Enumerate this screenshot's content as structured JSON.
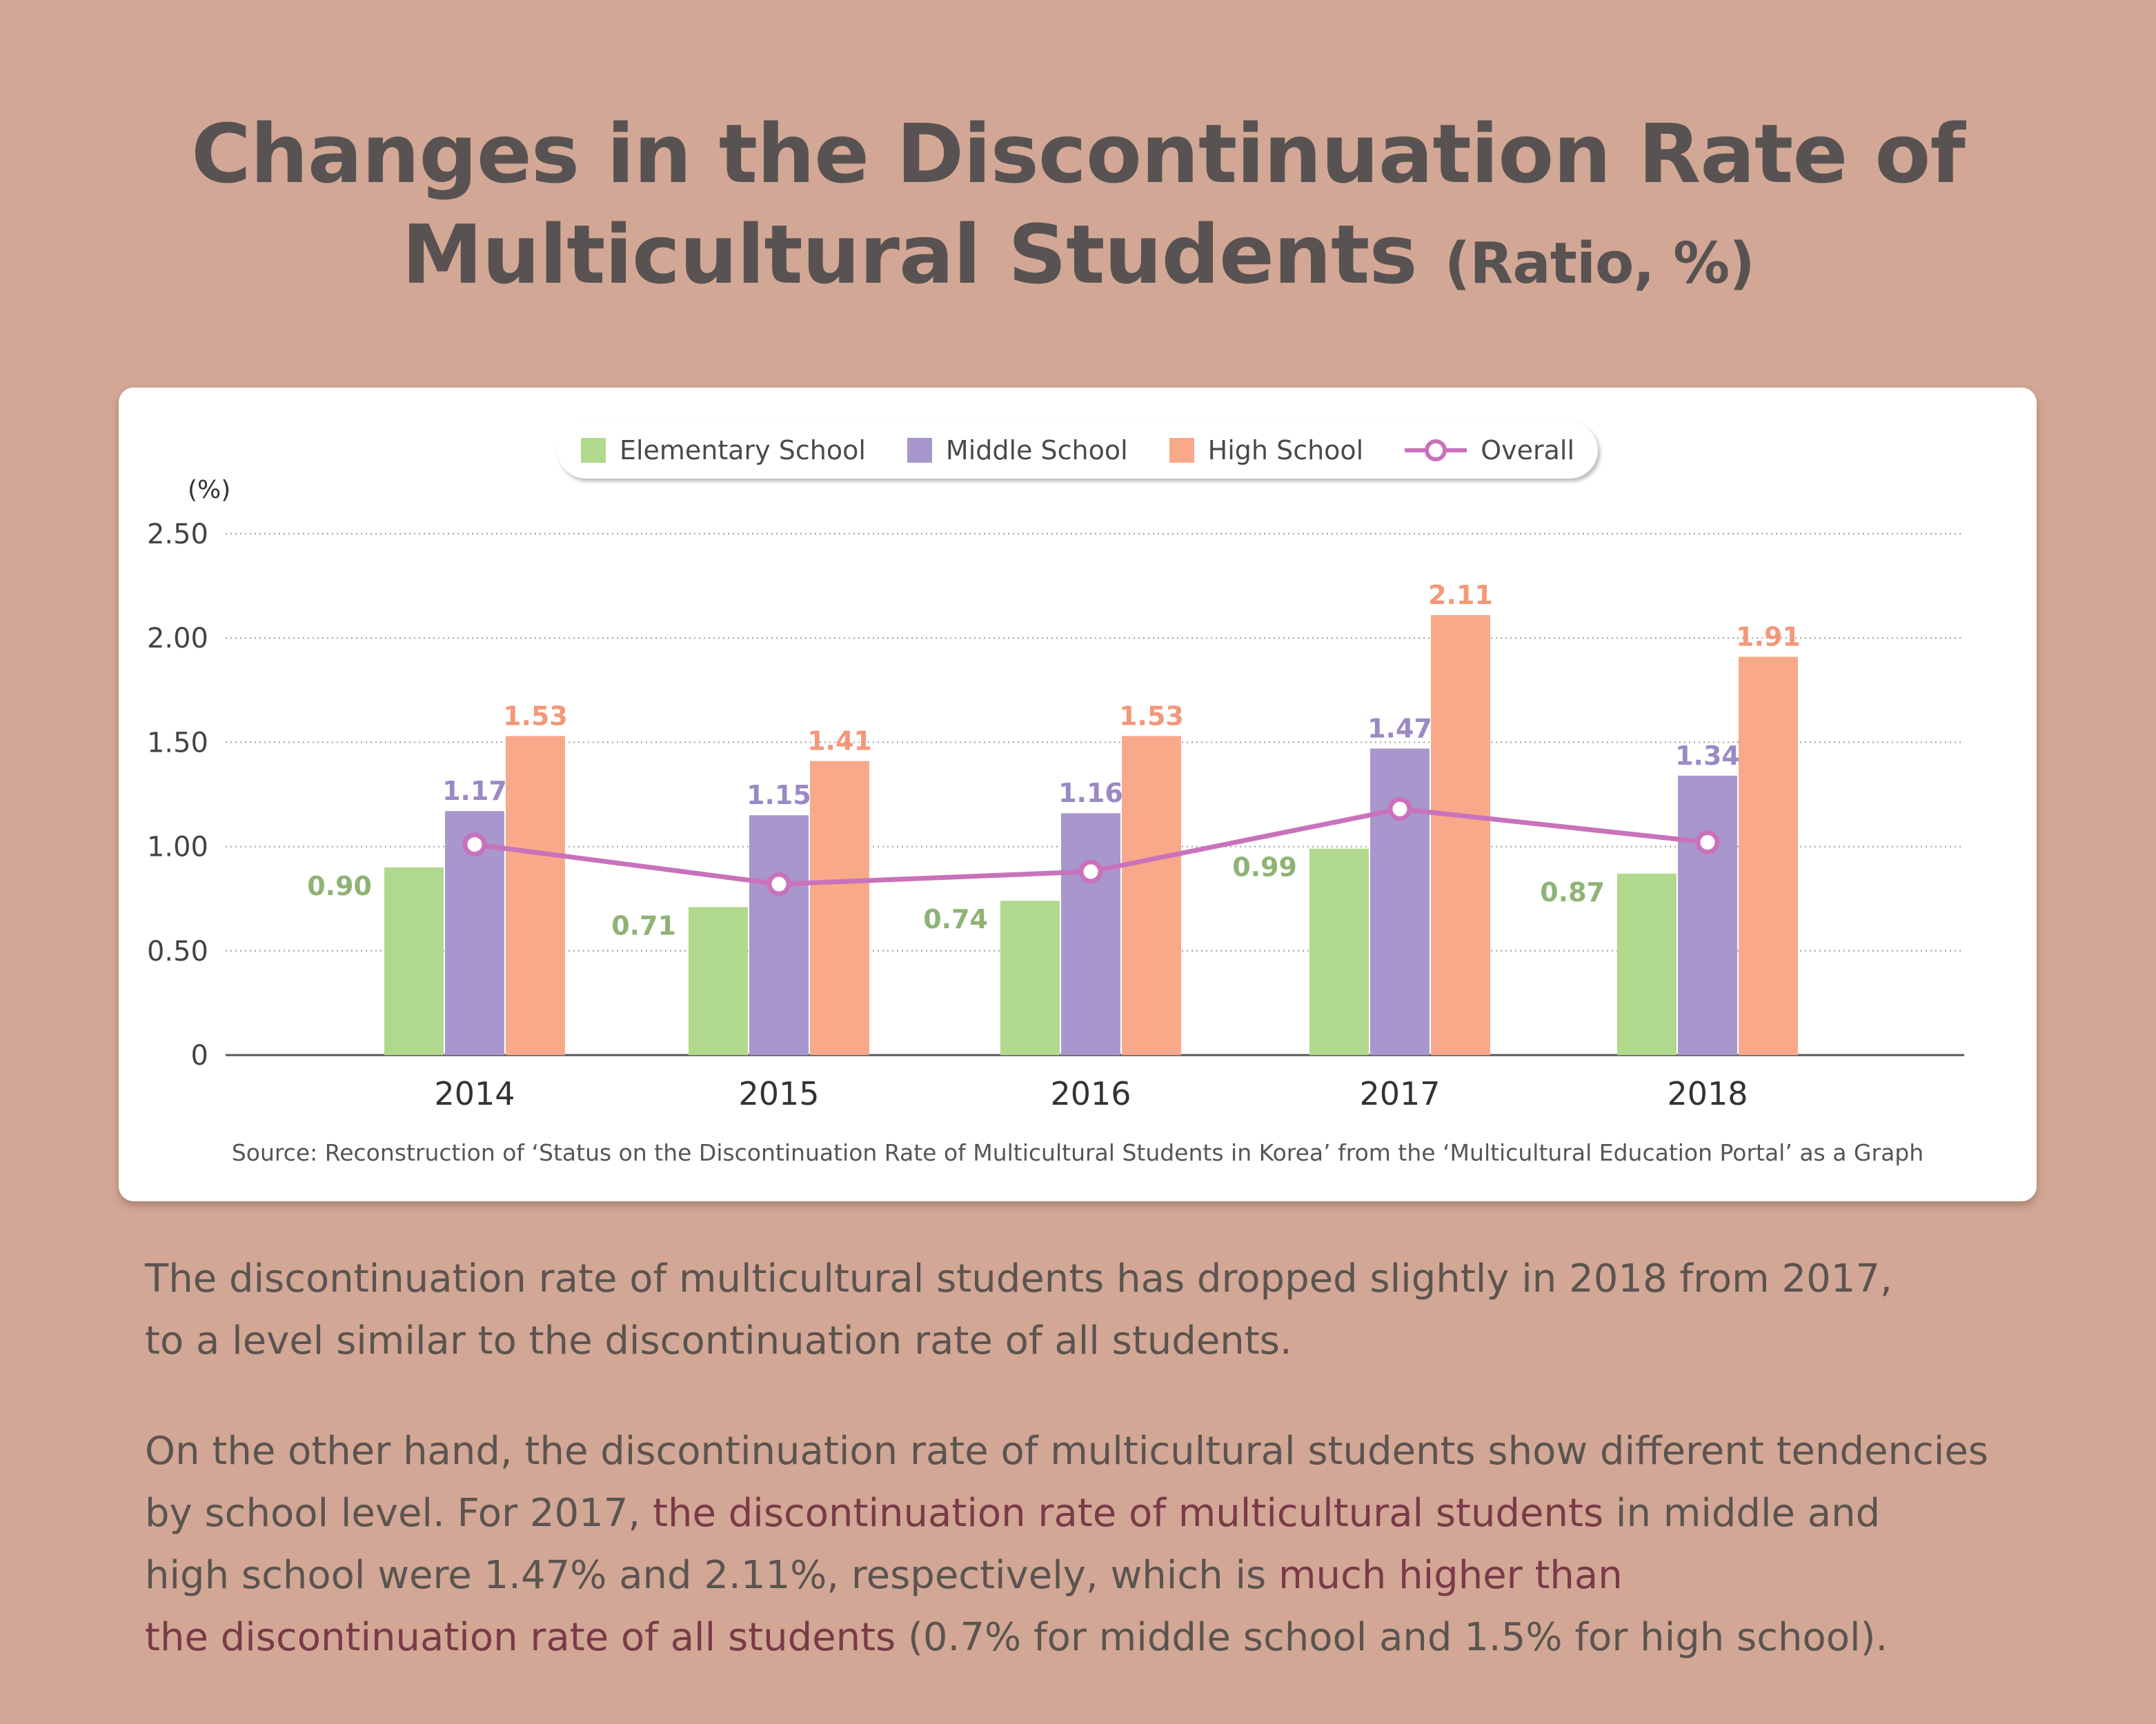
{
  "title": {
    "line1": "Changes in the Discontinuation Rate of",
    "line2": "Multicultural Students",
    "unit": "(Ratio, %)"
  },
  "colors": {
    "elementary": "#b0d98d",
    "middle": "#a897cc",
    "high": "#f8a98a",
    "overall": "#c972bc",
    "elementary_label": "#8fb374",
    "middle_label": "#9a8ac4",
    "high_label": "#f39879"
  },
  "chart_data": {
    "type": "bar",
    "categories": [
      "2014",
      "2015",
      "2016",
      "2017",
      "2018"
    ],
    "series": [
      {
        "name": "Elementary School",
        "values": [
          0.9,
          0.71,
          0.74,
          0.99,
          0.87
        ]
      },
      {
        "name": "Middle School",
        "values": [
          1.17,
          1.15,
          1.16,
          1.47,
          1.34
        ]
      },
      {
        "name": "High School",
        "values": [
          1.53,
          1.41,
          1.53,
          2.11,
          1.91
        ]
      }
    ],
    "line_series": {
      "name": "Overall",
      "values": [
        1.01,
        0.82,
        0.88,
        1.18,
        1.02
      ]
    },
    "value_labels": {
      "Elementary School": [
        "0.90",
        "0.71",
        "0.74",
        "0.99",
        "0.87"
      ],
      "Middle School": [
        "1.17",
        "1.15",
        "1.16",
        "1.47",
        "1.34"
      ],
      "High School": [
        "1.53",
        "1.41",
        "1.53",
        "2.11",
        "1.91"
      ]
    },
    "ylabel": "(%)",
    "ylim": [
      0,
      2.5
    ],
    "yticks": [
      0,
      0.5,
      1.0,
      1.5,
      2.0,
      2.5
    ],
    "ytick_labels": [
      "0",
      "0.50",
      "1.00",
      "1.50",
      "2.00",
      "2.50"
    ],
    "grid": true,
    "legend_position": "top-center"
  },
  "legend": {
    "items": [
      "Elementary School",
      "Middle School",
      "High School",
      "Overall"
    ]
  },
  "source": "Source: Reconstruction of ‘Status on the Discontinuation Rate of Multicultural Students in Korea’ from the ‘Multicultural Education Portal’ as a Graph",
  "paragraph1": {
    "line1": "The discontinuation rate of multicultural students has dropped slightly in 2018 from 2017,",
    "line2": "to a level similar to the discontinuation rate of all students."
  },
  "paragraph2": {
    "line1": "On the other hand, the discontinuation rate of multicultural students show different tendencies",
    "line2_a": "by school level. For 2017, ",
    "line2_hl": "the discontinuation rate of multicultural students",
    "line2_b": " in middle and",
    "line3_a": "high school were 1.47% and 2.11%, respectively, which is ",
    "line3_hl": "much higher than",
    "line4_hl": "the discontinuation rate of all students",
    "line4_b": " (0.7% for middle school and 1.5% for high school)."
  }
}
